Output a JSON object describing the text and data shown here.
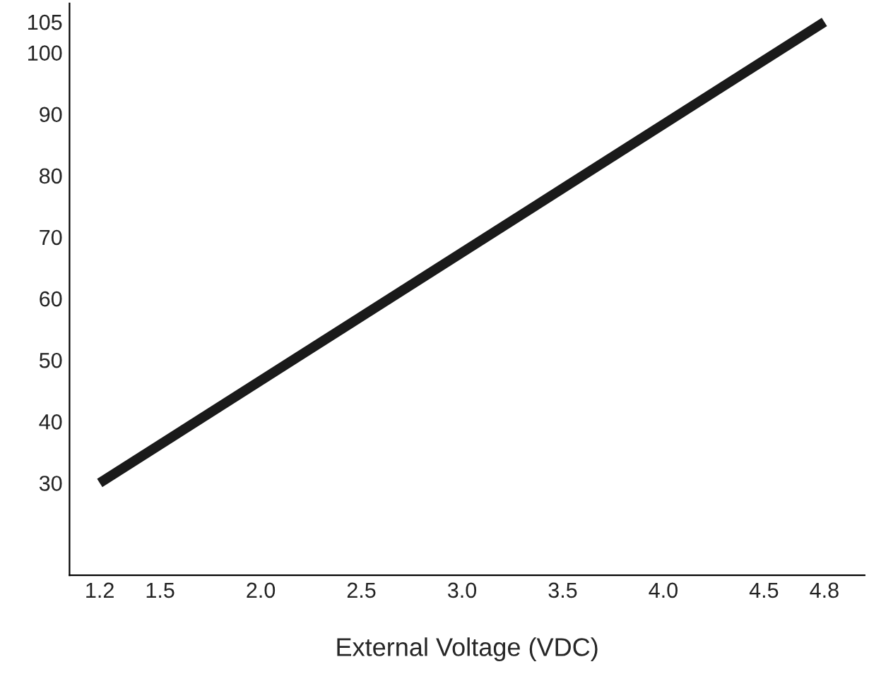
{
  "chart_data": {
    "type": "line",
    "xlabel": "External Voltage (VDC)",
    "series": [
      {
        "color": "#1a1a1a",
        "x": [
          1.2,
          4.8
        ],
        "values": [
          30,
          105
        ]
      }
    ],
    "xlim": [
      1.05,
      5.0
    ],
    "xticks": [
      1.2,
      1.5,
      {
        "value": 2,
        "label": "2.0"
      },
      2.5,
      {
        "value": 3,
        "label": "3.0"
      },
      3.5,
      {
        "value": 4,
        "label": "4.0"
      },
      4.5,
      4.8
    ],
    "ylim": [
      15,
      108
    ],
    "yticks": [
      30,
      40,
      50,
      60,
      70,
      80,
      90,
      100,
      105
    ],
    "grid": false,
    "legend": false,
    "marker": "none",
    "line_style": "solid"
  }
}
